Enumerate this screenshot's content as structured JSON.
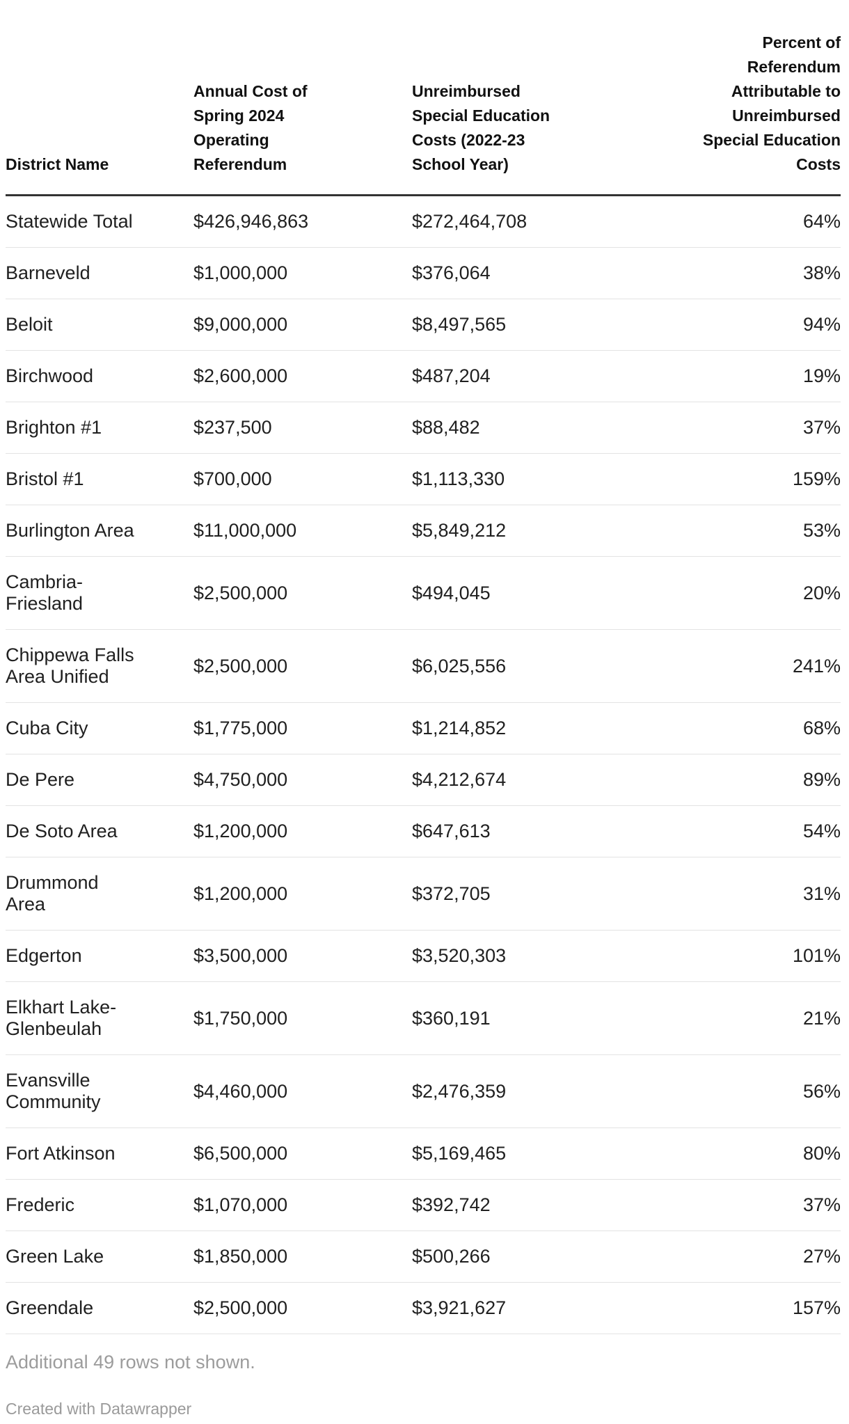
{
  "chart_data": {
    "type": "table",
    "title": "",
    "columns": [
      "District Name",
      "Annual Cost of Spring 2024 Operating Referendum",
      "Unreimbursed Special Education Costs (2022-23 School Year)",
      "Percent of Referendum Attributable to Unreimbursed Special Education Costs"
    ],
    "rows": [
      {
        "district": "Statewide Total",
        "annual_cost": "$426,946,863",
        "unreimbursed_cost": "$272,464,708",
        "percent": "64%"
      },
      {
        "district": "Barneveld",
        "annual_cost": "$1,000,000",
        "unreimbursed_cost": "$376,064",
        "percent": "38%"
      },
      {
        "district": "Beloit",
        "annual_cost": "$9,000,000",
        "unreimbursed_cost": "$8,497,565",
        "percent": "94%"
      },
      {
        "district": "Birchwood",
        "annual_cost": "$2,600,000",
        "unreimbursed_cost": "$487,204",
        "percent": "19%"
      },
      {
        "district": "Brighton #1",
        "annual_cost": "$237,500",
        "unreimbursed_cost": "$88,482",
        "percent": "37%"
      },
      {
        "district": "Bristol #1",
        "annual_cost": "$700,000",
        "unreimbursed_cost": "$1,113,330",
        "percent": "159%"
      },
      {
        "district": "Burlington Area",
        "annual_cost": "$11,000,000",
        "unreimbursed_cost": "$5,849,212",
        "percent": "53%"
      },
      {
        "district": "Cambria-Friesland",
        "annual_cost": "$2,500,000",
        "unreimbursed_cost": "$494,045",
        "percent": "20%"
      },
      {
        "district": "Chippewa Falls Area Unified",
        "annual_cost": "$2,500,000",
        "unreimbursed_cost": "$6,025,556",
        "percent": "241%"
      },
      {
        "district": "Cuba City",
        "annual_cost": "$1,775,000",
        "unreimbursed_cost": "$1,214,852",
        "percent": "68%"
      },
      {
        "district": "De Pere",
        "annual_cost": "$4,750,000",
        "unreimbursed_cost": "$4,212,674",
        "percent": "89%"
      },
      {
        "district": "De Soto Area",
        "annual_cost": "$1,200,000",
        "unreimbursed_cost": "$647,613",
        "percent": "54%"
      },
      {
        "district": "Drummond Area",
        "annual_cost": "$1,200,000",
        "unreimbursed_cost": "$372,705",
        "percent": "31%"
      },
      {
        "district": "Edgerton",
        "annual_cost": "$3,500,000",
        "unreimbursed_cost": "$3,520,303",
        "percent": "101%"
      },
      {
        "district": "Elkhart Lake-Glenbeulah",
        "annual_cost": "$1,750,000",
        "unreimbursed_cost": "$360,191",
        "percent": "21%"
      },
      {
        "district": "Evansville Community",
        "annual_cost": "$4,460,000",
        "unreimbursed_cost": "$2,476,359",
        "percent": "56%"
      },
      {
        "district": "Fort Atkinson",
        "annual_cost": "$6,500,000",
        "unreimbursed_cost": "$5,169,465",
        "percent": "80%"
      },
      {
        "district": "Frederic",
        "annual_cost": "$1,070,000",
        "unreimbursed_cost": "$392,742",
        "percent": "37%"
      },
      {
        "district": "Green Lake",
        "annual_cost": "$1,850,000",
        "unreimbursed_cost": "$500,266",
        "percent": "27%"
      },
      {
        "district": "Greendale",
        "annual_cost": "$2,500,000",
        "unreimbursed_cost": "$3,921,627",
        "percent": "157%"
      }
    ],
    "layout": {
      "grid": "horizontal row dividers only",
      "legend": "none",
      "header_rule_color": "#333333",
      "divider_color": "#e3e3e3"
    }
  },
  "table": {
    "headers": [
      {
        "label": "District Name",
        "align": "left"
      },
      {
        "label": "Annual Cost of\nSpring 2024\nOperating\nReferendum",
        "align": "left"
      },
      {
        "label": "Unreimbursed\nSpecial Education\nCosts (2022-23\nSchool Year)",
        "align": "left"
      },
      {
        "label": "Percent of\nReferendum\nAttributable to\nUnreimbursed\nSpecial Education\nCosts",
        "align": "right"
      }
    ],
    "rows": [
      [
        "Statewide Total",
        "$426,946,863",
        "$272,464,708",
        "64%"
      ],
      [
        "Barneveld",
        "$1,000,000",
        "$376,064",
        "38%"
      ],
      [
        "Beloit",
        "$9,000,000",
        "$8,497,565",
        "94%"
      ],
      [
        "Birchwood",
        "$2,600,000",
        "$487,204",
        "19%"
      ],
      [
        "Brighton #1",
        "$237,500",
        "$88,482",
        "37%"
      ],
      [
        "Bristol #1",
        "$700,000",
        "$1,113,330",
        "159%"
      ],
      [
        "Burlington Area",
        "$11,000,000",
        "$5,849,212",
        "53%"
      ],
      [
        "Cambria-\nFriesland",
        "$2,500,000",
        "$494,045",
        "20%"
      ],
      [
        "Chippewa Falls\nArea Unified",
        "$2,500,000",
        "$6,025,556",
        "241%"
      ],
      [
        "Cuba City",
        "$1,775,000",
        "$1,214,852",
        "68%"
      ],
      [
        "De Pere",
        "$4,750,000",
        "$4,212,674",
        "89%"
      ],
      [
        "De Soto Area",
        "$1,200,000",
        "$647,613",
        "54%"
      ],
      [
        "Drummond\nArea",
        "$1,200,000",
        "$372,705",
        "31%"
      ],
      [
        "Edgerton",
        "$3,500,000",
        "$3,520,303",
        "101%"
      ],
      [
        "Elkhart Lake-\nGlenbeulah",
        "$1,750,000",
        "$360,191",
        "21%"
      ],
      [
        "Evansville\nCommunity",
        "$4,460,000",
        "$2,476,359",
        "56%"
      ],
      [
        "Fort Atkinson",
        "$6,500,000",
        "$5,169,465",
        "80%"
      ],
      [
        "Frederic",
        "$1,070,000",
        "$392,742",
        "37%"
      ],
      [
        "Green Lake",
        "$1,850,000",
        "$500,266",
        "27%"
      ],
      [
        "Greendale",
        "$2,500,000",
        "$3,921,627",
        "157%"
      ]
    ]
  },
  "footer": {
    "note": "Additional 49 rows not shown.",
    "attribution": "Created with Datawrapper"
  },
  "colors": {
    "header_text": "#111111",
    "body_text": "#202020",
    "header_rule": "#333333",
    "row_divider": "#e3e3e3",
    "muted_text": "#9c9c9c",
    "background": "#ffffff"
  }
}
